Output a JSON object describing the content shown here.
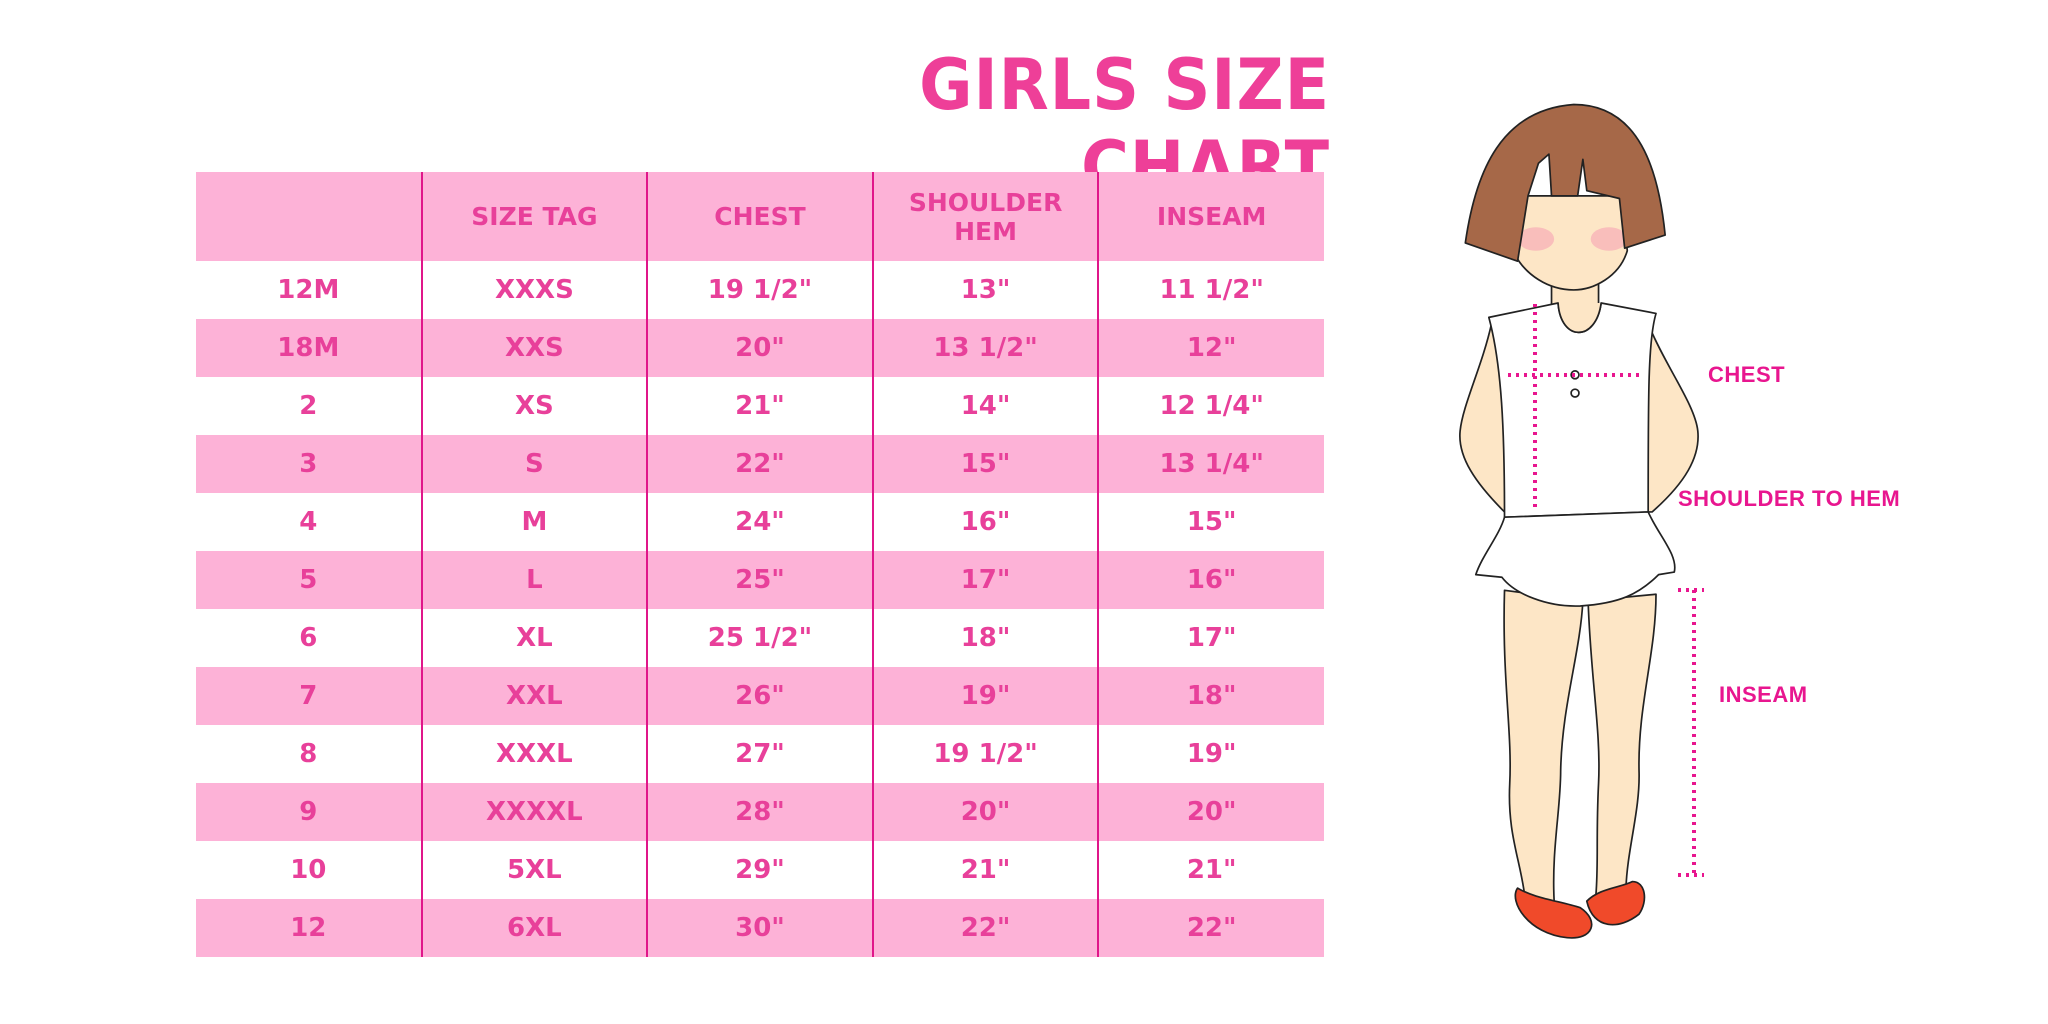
{
  "title": "GIRLS SIZE CHART",
  "table": {
    "headers": [
      "",
      "SIZE TAG",
      "CHEST",
      "SHOULDER HEM",
      "INSEAM"
    ],
    "rows": [
      [
        "12M",
        "XXXS",
        "19 1/2\"",
        "13\"",
        "11 1/2\""
      ],
      [
        "18M",
        "XXS",
        "20\"",
        "13 1/2\"",
        "12\""
      ],
      [
        "2",
        "XS",
        "21\"",
        "14\"",
        "12 1/4\""
      ],
      [
        "3",
        "S",
        "22\"",
        "15\"",
        "13 1/4\""
      ],
      [
        "4",
        "M",
        "24\"",
        "16\"",
        "15\""
      ],
      [
        "5",
        "L",
        "25\"",
        "17\"",
        "16\""
      ],
      [
        "6",
        "XL",
        "25 1/2\"",
        "18\"",
        "17\""
      ],
      [
        "7",
        "XXL",
        "26\"",
        "19\"",
        "18\""
      ],
      [
        "8",
        "XXXL",
        "27\"",
        "19 1/2\"",
        "19\""
      ],
      [
        "9",
        "XXXXL",
        "28\"",
        "20\"",
        "20\""
      ],
      [
        "10",
        "5XL",
        "29\"",
        "21\"",
        "21\""
      ],
      [
        "12",
        "6XL",
        "30\"",
        "22\"",
        "22\""
      ]
    ]
  },
  "figure": {
    "labels": {
      "chest": "CHEST",
      "shoulder_to_hem": "SHOULDER TO HEM",
      "inseam": "INSEAM"
    }
  },
  "colors": {
    "accent": "#ee3f98",
    "row_pink": "#fdb2d7",
    "divider": "#e0168a",
    "measure_line": "#e8168f"
  }
}
